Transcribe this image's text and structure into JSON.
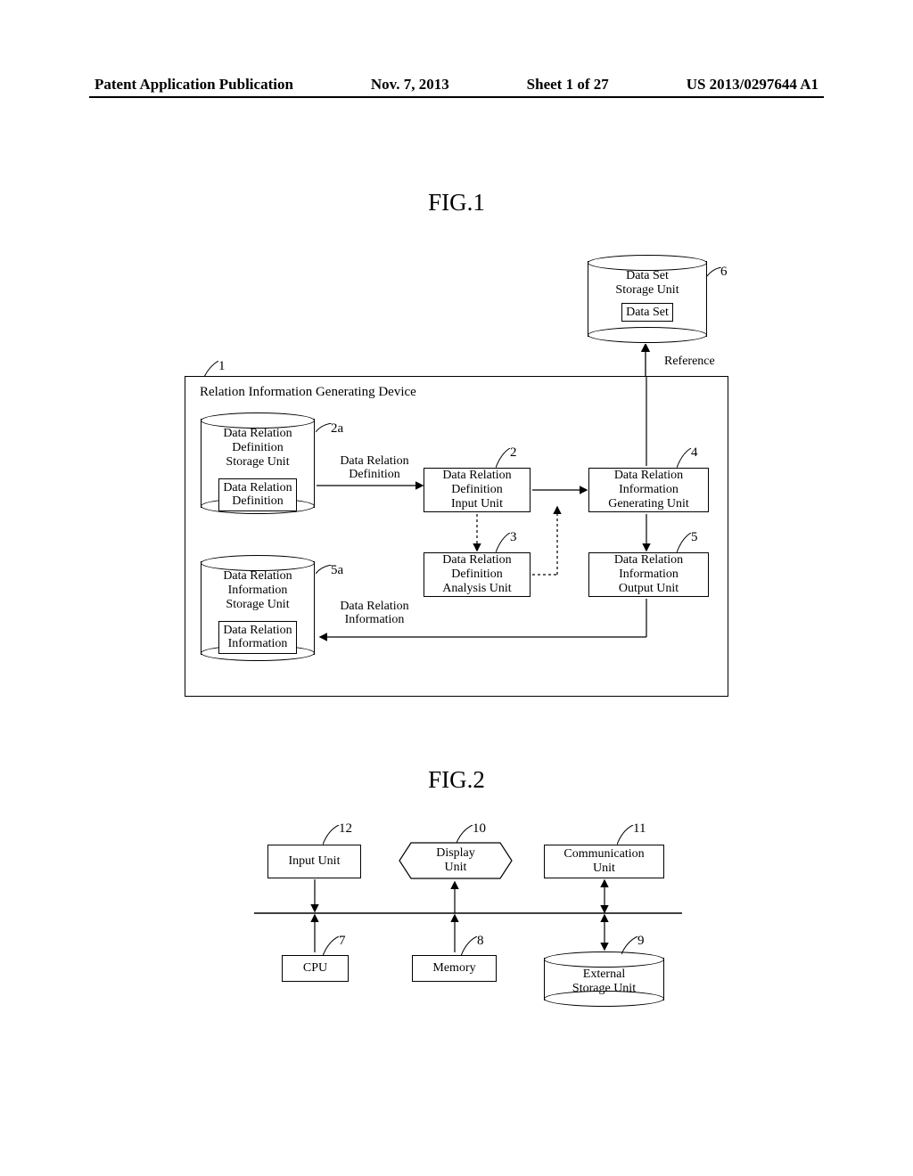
{
  "header": {
    "left": "Patent Application Publication",
    "date": "Nov. 7, 2013",
    "sheet": "Sheet 1 of 27",
    "pubno": "US 2013/0297644 A1"
  },
  "fig1": {
    "label": "FIG.1",
    "container_title": "Relation Information Generating Device",
    "container_ref": "1",
    "db_top": {
      "title": "Data Set\nStorage Unit",
      "inner": "Data Set",
      "ref": "6"
    },
    "db_left_upper": {
      "title": "Data Relation\nDefinition\nStorage Unit",
      "inner": "Data Relation\nDefinition",
      "ref": "2a"
    },
    "db_left_lower": {
      "title": "Data Relation\nInformation\nStorage Unit",
      "inner": "Data Relation\nInformation",
      "ref": "5a"
    },
    "block2": {
      "label": "Data Relation\nDefinition\nInput Unit",
      "ref": "2"
    },
    "block3": {
      "label": "Data Relation\nDefinition\nAnalysis Unit",
      "ref": "3"
    },
    "block4": {
      "label": "Data Relation\nInformation\nGenerating Unit",
      "ref": "4"
    },
    "block5": {
      "label": "Data Relation\nInformation\nOutput Unit",
      "ref": "5"
    },
    "edge_def": "Data Relation\nDefinition",
    "edge_info": "Data Relation\nInformation",
    "reference_label": "Reference"
  },
  "fig2": {
    "label": "FIG.2",
    "cpu": {
      "label": "CPU",
      "ref": "7"
    },
    "memory": {
      "label": "Memory",
      "ref": "8"
    },
    "ext": {
      "label": "External\nStorage Unit",
      "ref": "9"
    },
    "display": {
      "label": "Display\nUnit",
      "ref": "10"
    },
    "comm": {
      "label": "Communication\nUnit",
      "ref": "11"
    },
    "input": {
      "label": "Input Unit",
      "ref": "12"
    }
  },
  "colors": {
    "line": "#000000",
    "bg": "#ffffff"
  }
}
